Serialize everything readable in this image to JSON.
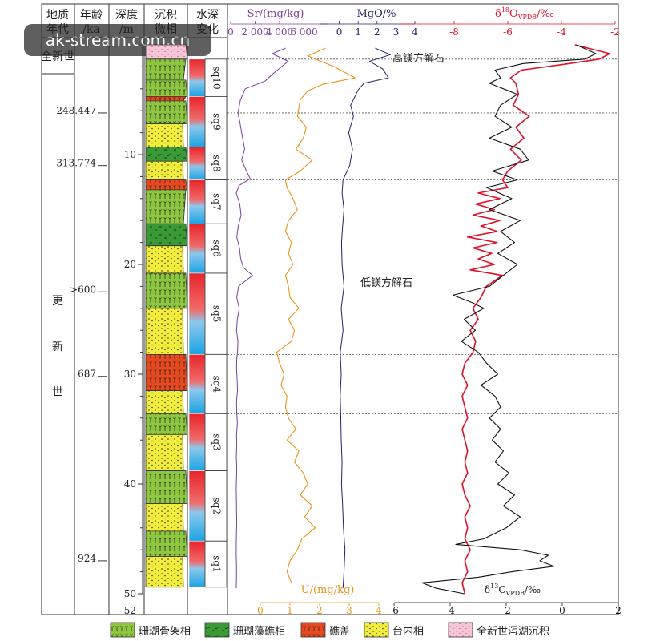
{
  "watermark": "ak-stream.com.cn",
  "headers": {
    "era": [
      "地质",
      "年代"
    ],
    "age": [
      "年龄",
      "/ka"
    ],
    "depth": [
      "深度",
      "/m"
    ],
    "facies": [
      "沉积",
      "微相"
    ],
    "water": [
      "水深",
      "变化"
    ]
  },
  "eras": {
    "holocene": "全新世",
    "pleistocene": [
      "更",
      "新",
      "世"
    ]
  },
  "ages": [
    {
      "label": "248.447",
      "depth": 6.2
    },
    {
      "label": "313.774",
      "depth": 11.0
    },
    {
      "label": ">600",
      "depth": 22.5
    },
    {
      "label": "687",
      "depth": 30.2
    },
    {
      "label": "924",
      "depth": 47.0
    }
  ],
  "depth_ticks": [
    "10",
    "20",
    "30",
    "40",
    "50"
  ],
  "depth_max_label": "52",
  "sequences": [
    {
      "name": "sq10",
      "top": 1.3,
      "bottom": 4.7
    },
    {
      "name": "sq9",
      "top": 4.7,
      "bottom": 9.3
    },
    {
      "name": "sq8",
      "top": 9.3,
      "bottom": 12.3
    },
    {
      "name": "sq7",
      "top": 12.3,
      "bottom": 16.3
    },
    {
      "name": "sq6",
      "top": 16.3,
      "bottom": 20.8
    },
    {
      "name": "sq5",
      "top": 20.8,
      "bottom": 28.2
    },
    {
      "name": "sq4",
      "top": 28.2,
      "bottom": 33.6
    },
    {
      "name": "sq3",
      "top": 33.6,
      "bottom": 38.8
    },
    {
      "name": "sq2",
      "top": 38.8,
      "bottom": 45.2
    },
    {
      "name": "sq1",
      "top": 45.2,
      "bottom": 49.4
    }
  ],
  "facies_column": [
    {
      "type": "lagoon",
      "top": 0.0,
      "bottom": 1.3
    },
    {
      "type": "skeletal",
      "top": 1.3,
      "bottom": 3.2
    },
    {
      "type": "skeletal",
      "top": 3.2,
      "bottom": 4.7
    },
    {
      "type": "reefcap",
      "top": 4.7,
      "bottom": 5.1
    },
    {
      "type": "skeletal",
      "top": 5.1,
      "bottom": 7.2
    },
    {
      "type": "platform",
      "top": 7.2,
      "bottom": 9.3
    },
    {
      "type": "algal",
      "top": 9.3,
      "bottom": 10.6
    },
    {
      "type": "platform",
      "top": 10.6,
      "bottom": 12.3
    },
    {
      "type": "reefcap",
      "top": 12.3,
      "bottom": 13.2
    },
    {
      "type": "skeletal",
      "top": 13.2,
      "bottom": 16.3
    },
    {
      "type": "algal",
      "top": 16.3,
      "bottom": 18.3
    },
    {
      "type": "platform",
      "top": 18.3,
      "bottom": 20.8
    },
    {
      "type": "skeletal",
      "top": 20.8,
      "bottom": 24.0
    },
    {
      "type": "platform",
      "top": 24.0,
      "bottom": 28.2
    },
    {
      "type": "reefcap",
      "top": 28.2,
      "bottom": 31.5
    },
    {
      "type": "platform",
      "top": 31.5,
      "bottom": 33.6
    },
    {
      "type": "skeletal",
      "top": 33.6,
      "bottom": 35.5
    },
    {
      "type": "platform",
      "top": 35.5,
      "bottom": 38.8
    },
    {
      "type": "skeletal",
      "top": 38.8,
      "bottom": 41.8
    },
    {
      "type": "platform",
      "top": 41.8,
      "bottom": 44.3
    },
    {
      "type": "skeletal",
      "top": 44.3,
      "bottom": 46.6
    },
    {
      "type": "platform",
      "top": 46.6,
      "bottom": 49.4
    }
  ],
  "boundaries": [
    1.3,
    6.2,
    12.3,
    28.2,
    33.6
  ],
  "annotations": {
    "high_mg": "高镁方解石",
    "low_mg": "低镁方解石"
  },
  "legend": [
    {
      "type": "skeletal",
      "label": "珊瑚骨架相"
    },
    {
      "type": "algal",
      "label": "珊瑚藻礁相"
    },
    {
      "type": "reefcap",
      "label": "礁盖"
    },
    {
      "type": "platform",
      "label": "台内相"
    },
    {
      "type": "lagoon",
      "label": "全新世泻湖沉积"
    }
  ],
  "colors": {
    "sr": "#7b3f9e",
    "u": "#e8941a",
    "mgo": "#23236e",
    "o18": "#e0102a",
    "c13": "#111111",
    "green": "#8dc63f",
    "dark_green": "#3a9a35",
    "red": "#e8491e",
    "yellow": "#f3ee3a",
    "pink": "#f7c6d9",
    "blue": "#29aae1"
  },
  "chart_data": {
    "type": "line",
    "y_axis": "深度/m",
    "ylim": [
      0,
      52
    ],
    "axes": {
      "sr": {
        "label": "Sr/(mg/kg)",
        "xlim": [
          0,
          8000
        ],
        "ticks": [
          "0",
          "2 000",
          "4 000",
          "6 000"
        ],
        "tick_values": [
          0,
          2000,
          4000,
          6000
        ]
      },
      "u": {
        "label": "U/(mg/kg)",
        "xlim": [
          0,
          4
        ],
        "ticks": [
          "0",
          "1",
          "2",
          "3",
          "4"
        ]
      },
      "mgo": {
        "label": "MgO/%",
        "xlim": [
          -1,
          4
        ],
        "ticks": [
          "0",
          "1",
          "2",
          "3",
          "4"
        ]
      },
      "o18": {
        "label_main": "δ",
        "label_sup": "18",
        "label_mid": "O",
        "label_sub": "VPDB",
        "label_end": "/‰",
        "xlim": [
          -10,
          -2
        ],
        "ticks": [
          "-8",
          "-6",
          "-4",
          "-2"
        ]
      },
      "c13": {
        "label_main": "δ",
        "label_sup": "13",
        "label_mid": "C",
        "label_sub": "VPDB",
        "label_end": "/‰",
        "xlim": [
          -6,
          2
        ],
        "ticks": [
          "-6",
          "-4",
          "-2",
          "0",
          "2"
        ]
      }
    },
    "series": [
      {
        "key": "sr",
        "depth": [
          0.3,
          0.8,
          1.5,
          2.5,
          3.3,
          4.0,
          5.0,
          6.2,
          7.0,
          8.0,
          9.5,
          10.5,
          11.5,
          12.2,
          12.8,
          13.5,
          14.5,
          15.5,
          16.5,
          17.5,
          18.5,
          19.5,
          20.3,
          21.0,
          22.0,
          23.0,
          24.0,
          25.0,
          26.0,
          27.0,
          28.0,
          28.6,
          29.5,
          30.5,
          31.5,
          32.5,
          33.5,
          34.5,
          35.5,
          36.5,
          37.5,
          38.5,
          39.5,
          40.5,
          41.5,
          42.5,
          43.5,
          44.5,
          45.5,
          46.5,
          47.5,
          48.5,
          49.5
        ],
        "values": [
          4500,
          3400,
          4700,
          3600,
          2800,
          1200,
          800,
          600,
          750,
          900,
          1150,
          900,
          1300,
          1600,
          700,
          450,
          750,
          850,
          620,
          500,
          720,
          820,
          1050,
          1800,
          650,
          500,
          700,
          550,
          480,
          600,
          560,
          500,
          480,
          530,
          560,
          480,
          500,
          550,
          480,
          500,
          460,
          500,
          480,
          450,
          470,
          480,
          500,
          470,
          460,
          450,
          480,
          470,
          460
        ]
      },
      {
        "key": "u",
        "depth": [
          0.3,
          1.0,
          2.0,
          3.0,
          3.6,
          4.2,
          5.0,
          6.5,
          7.5,
          8.5,
          9.5,
          10.5,
          11.5,
          12.3,
          13.0,
          14.0,
          15.0,
          16.0,
          17.0,
          18.0,
          19.0,
          20.0,
          21.0,
          22.0,
          23.0,
          24.0,
          25.0,
          26.0,
          27.0,
          28.0,
          29.0,
          30.0,
          31.0,
          32.0,
          33.0,
          34.0,
          35.0,
          36.0,
          37.0,
          38.0,
          39.0,
          40.0,
          41.0,
          42.0,
          43.0,
          44.0,
          45.0,
          46.0,
          47.0,
          48.0,
          49.0
        ],
        "values": [
          2.2,
          1.6,
          2.5,
          3.2,
          2.1,
          1.6,
          1.35,
          1.25,
          1.55,
          1.45,
          1.2,
          1.75,
          1.35,
          0.85,
          0.9,
          1.1,
          1.25,
          0.95,
          0.85,
          1.05,
          0.95,
          1.1,
          0.85,
          0.95,
          1.0,
          1.3,
          0.95,
          1.15,
          1.05,
          0.55,
          0.65,
          0.8,
          0.7,
          0.9,
          0.85,
          0.95,
          1.2,
          0.9,
          1.3,
          1.15,
          1.45,
          1.6,
          1.35,
          1.75,
          1.5,
          1.85,
          1.4,
          1.25,
          1.0,
          0.9,
          1.05
        ]
      },
      {
        "key": "mgo",
        "depth": [
          0.3,
          0.9,
          1.5,
          2.2,
          3.0,
          3.5,
          4.1,
          5.5,
          6.5,
          8.0,
          9.5,
          11.0,
          12.3,
          13.5,
          15.0,
          16.5,
          18.0,
          20.0,
          22.0,
          24.0,
          26.0,
          28.0,
          30.0,
          32.0,
          34.0,
          36.0,
          38.0,
          40.0,
          42.0,
          44.0,
          46.0,
          48.0,
          49.5
        ],
        "values": [
          1.9,
          2.7,
          1.6,
          2.3,
          2.6,
          1.3,
          1.0,
          0.6,
          0.75,
          0.5,
          0.7,
          0.55,
          0.2,
          0.15,
          0.25,
          0.18,
          0.12,
          0.15,
          0.25,
          0.1,
          0.2,
          0.05,
          0.1,
          0.05,
          0.08,
          0.1,
          0.15,
          0.12,
          0.18,
          0.22,
          0.3,
          0.25,
          0.2
        ]
      },
      {
        "key": "o18",
        "depth": [
          0.0,
          0.8,
          1.3,
          1.7,
          2.3,
          3.0,
          3.5,
          4.5,
          5.5,
          6.5,
          7.5,
          8.5,
          9.5,
          10.5,
          11.5,
          12.3,
          13.0,
          13.5,
          14.0,
          14.5,
          15.0,
          15.5,
          16.0,
          16.5,
          17.0,
          17.5,
          18.0,
          18.5,
          19.0,
          19.5,
          20.0,
          20.5,
          21.0,
          22.0,
          23.0,
          24.0,
          25.0,
          26.0,
          27.0,
          28.0,
          29.0,
          30.0,
          31.0,
          32.0,
          33.0,
          34.0,
          35.0,
          36.0,
          37.0,
          38.0,
          39.0,
          40.0,
          41.0,
          42.0,
          43.0,
          44.0,
          45.0,
          46.0,
          47.0,
          48.0,
          49.0,
          50.0
        ],
        "values": [
          -3.5,
          -2.2,
          -2.6,
          -3.7,
          -5.5,
          -5.9,
          -5.7,
          -5.6,
          -5.8,
          -5.2,
          -5.7,
          -5.4,
          -5.9,
          -5.5,
          -6.0,
          -6.2,
          -6.0,
          -7.1,
          -6.3,
          -7.2,
          -6.5,
          -7.3,
          -6.3,
          -7.0,
          -6.4,
          -7.5,
          -6.4,
          -7.3,
          -6.6,
          -7.1,
          -6.5,
          -7.4,
          -6.2,
          -6.8,
          -7.0,
          -7.3,
          -7.1,
          -7.4,
          -7.2,
          -7.3,
          -7.6,
          -7.7,
          -7.5,
          -7.7,
          -7.6,
          -7.5,
          -7.7,
          -7.6,
          -7.5,
          -7.6,
          -7.5,
          -7.7,
          -7.6,
          -7.4,
          -7.6,
          -7.5,
          -7.6,
          -7.4,
          -7.6,
          -7.5,
          -7.7,
          -7.6
        ]
      },
      {
        "key": "c13",
        "depth": [
          0.0,
          0.8,
          1.3,
          1.7,
          2.3,
          3.0,
          3.5,
          4.5,
          5.5,
          6.5,
          7.5,
          8.5,
          9.5,
          10.5,
          11.5,
          12.3,
          13.0,
          14.0,
          15.0,
          16.0,
          17.0,
          18.0,
          19.0,
          20.0,
          21.0,
          22.0,
          22.8,
          23.5,
          24.0,
          25.0,
          26.0,
          27.0,
          28.0,
          29.0,
          30.0,
          31.0,
          32.0,
          33.0,
          34.0,
          35.0,
          36.0,
          37.0,
          38.0,
          39.0,
          40.0,
          41.0,
          42.0,
          43.0,
          44.0,
          45.0,
          45.5,
          46.0,
          46.5,
          47.0,
          47.5,
          48.0,
          48.5,
          49.0,
          49.5,
          50.0
        ],
        "values": [
          0.5,
          1.2,
          0.8,
          -1.4,
          -2.4,
          -2.2,
          -2.6,
          -1.6,
          -2.2,
          -2.4,
          -1.8,
          -2.6,
          -1.5,
          -1.2,
          -2.5,
          -1.6,
          -2.7,
          -1.8,
          -2.6,
          -1.5,
          -2.2,
          -1.7,
          -2.3,
          -1.6,
          -2.1,
          -2.6,
          -3.9,
          -3.2,
          -2.8,
          -3.5,
          -3.1,
          -3.6,
          -3.0,
          -2.7,
          -2.3,
          -2.9,
          -2.4,
          -2.2,
          -2.6,
          -2.2,
          -2.5,
          -2.1,
          -2.4,
          -1.9,
          -2.3,
          -1.7,
          -2.1,
          -1.5,
          -2.0,
          -2.8,
          -3.8,
          -1.5,
          -0.5,
          -0.8,
          -0.3,
          -1.8,
          -3.0,
          -5.0,
          -4.5,
          -3.5
        ]
      }
    ]
  }
}
